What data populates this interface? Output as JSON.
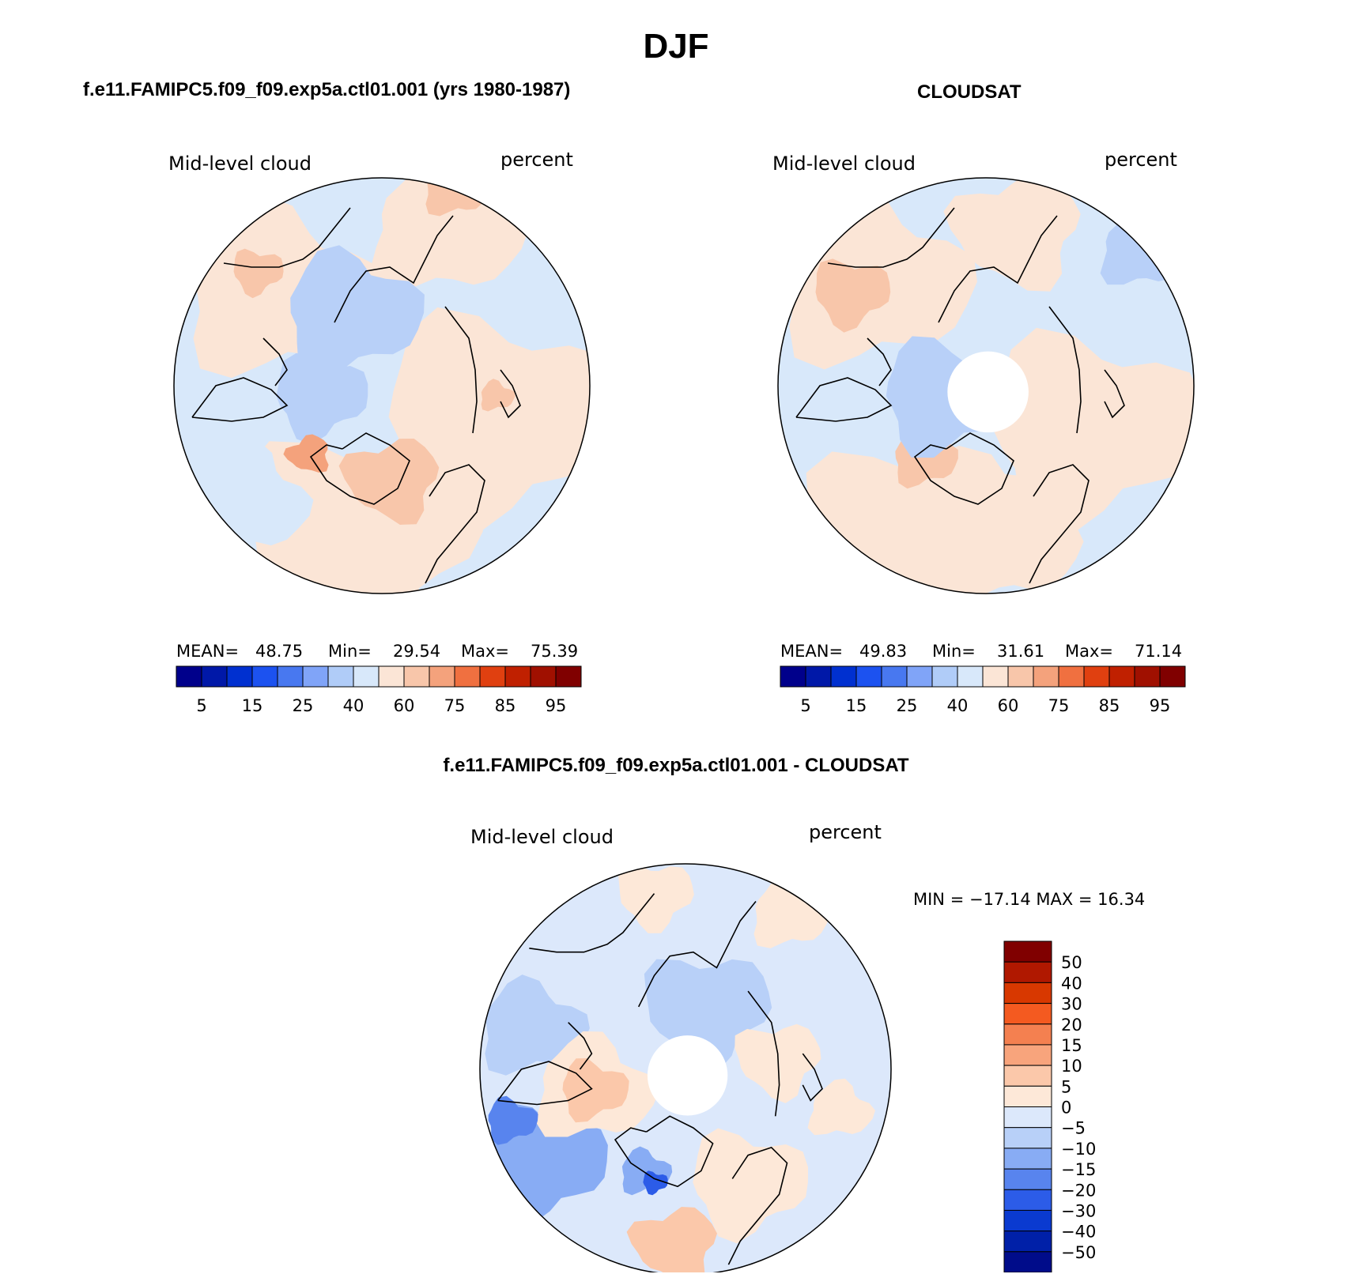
{
  "page": {
    "title": "DJF"
  },
  "panels": [
    {
      "heading": "f.e11.FAMIPC5.f09_f09.exp5a.ctl01.001 (yrs 1980-1987)",
      "variable": "Mid-level cloud",
      "units": "percent",
      "stats": {
        "mean_label": "MEAN=",
        "mean": "48.75",
        "min_label": "Min=",
        "min": "29.54",
        "max_label": "Max=",
        "max": "75.39"
      },
      "has_hole": false
    },
    {
      "heading": "CLOUDSAT",
      "variable": "Mid-level cloud",
      "units": "percent",
      "stats": {
        "mean_label": "MEAN=",
        "mean": "49.83",
        "min_label": "Min=",
        "min": "31.61",
        "max_label": "Max=",
        "max": "71.14"
      },
      "has_hole": true
    }
  ],
  "diff": {
    "heading": "f.e11.FAMIPC5.f09_f09.exp5a.ctl01.001 - CLOUDSAT",
    "variable": "Mid-level cloud",
    "units": "percent",
    "stats_text": "MIN = −17.14 MAX =   16.34"
  },
  "chart_data": [
    {
      "type": "heatmap",
      "projection": "north polar stereographic",
      "title": "f.e11.FAMIPC5.f09_f09.exp5a.ctl01.001 (yrs 1980-1987)",
      "variable": "Mid-level cloud",
      "units": "percent",
      "mean": 48.75,
      "min": 29.54,
      "max": 75.39,
      "colorbar_ticks": [
        "5",
        "15",
        "25",
        "40",
        "60",
        "75",
        "85",
        "95"
      ],
      "colors": [
        "#00008b",
        "#0018a8",
        "#0030d0",
        "#1c52f0",
        "#4878f0",
        "#80a4f8",
        "#b0ccf8",
        "#d8e8fa",
        "#fbe5d6",
        "#f8c6aa",
        "#f4a27c",
        "#f07040",
        "#e04010",
        "#c02000",
        "#a01000",
        "#800000"
      ]
    },
    {
      "type": "heatmap",
      "projection": "north polar stereographic",
      "title": "CLOUDSAT",
      "variable": "Mid-level cloud",
      "units": "percent",
      "mean": 49.83,
      "min": 31.61,
      "max": 71.14,
      "colorbar_ticks": [
        "5",
        "15",
        "25",
        "40",
        "60",
        "75",
        "85",
        "95"
      ],
      "colors": [
        "#00008b",
        "#0018a8",
        "#0030d0",
        "#1c52f0",
        "#4878f0",
        "#80a4f8",
        "#b0ccf8",
        "#d8e8fa",
        "#fbe5d6",
        "#f8c6aa",
        "#f4a27c",
        "#f07040",
        "#e04010",
        "#c02000",
        "#a01000",
        "#800000"
      ]
    },
    {
      "type": "heatmap",
      "projection": "north polar stereographic",
      "title": "f.e11.FAMIPC5.f09_f09.exp5a.ctl01.001 - CLOUDSAT",
      "variable": "Mid-level cloud",
      "units": "percent",
      "min": -17.14,
      "max": 16.34,
      "colorbar_ticks": [
        "50",
        "40",
        "30",
        "20",
        "15",
        "10",
        "5",
        "0",
        "−5",
        "−10",
        "−15",
        "−20",
        "−30",
        "−40",
        "−50"
      ],
      "colors": [
        "#800000",
        "#b01800",
        "#d83800",
        "#f45a20",
        "#f48050",
        "#f8a47c",
        "#fbc8aa",
        "#fde8d8",
        "#dce8fb",
        "#b8d0f8",
        "#88acf4",
        "#5884ee",
        "#2c5ce8",
        "#0a3ad0",
        "#0020a8",
        "#000c8a"
      ]
    }
  ]
}
